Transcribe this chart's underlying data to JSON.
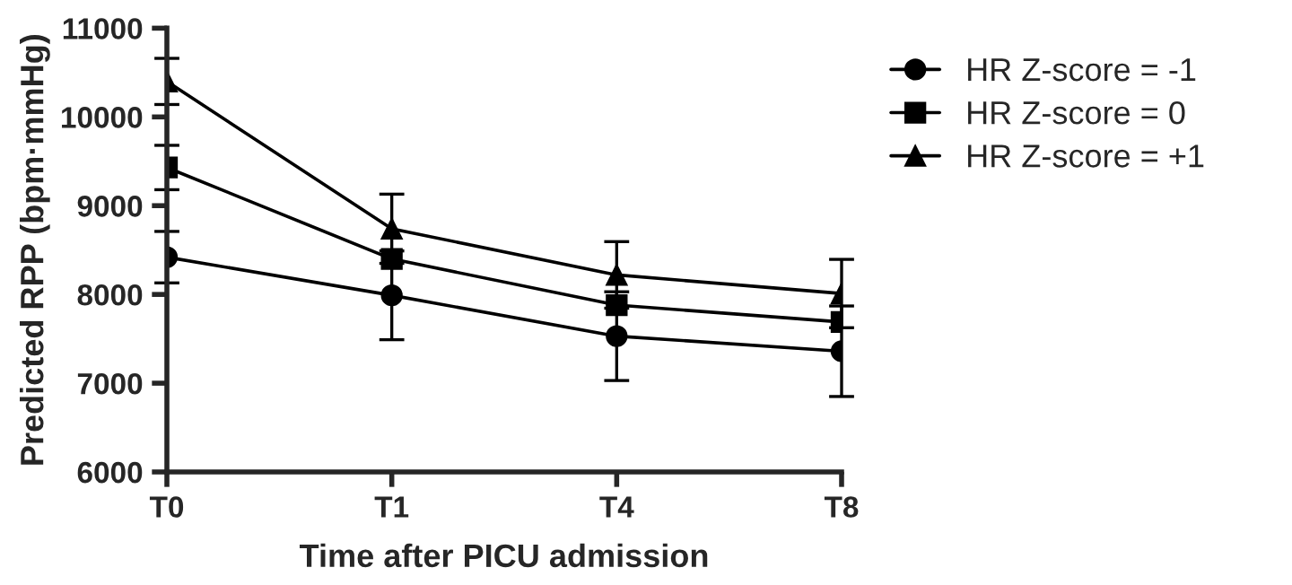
{
  "chart_data": {
    "type": "line",
    "xlabel": "Time after PICU admission",
    "ylabel": "Predicted RPP (bpm·mmHg)",
    "categories": [
      "T0",
      "T1",
      "T4",
      "T8"
    ],
    "ylim": [
      6000,
      11000
    ],
    "yticks": [
      6000,
      7000,
      8000,
      9000,
      10000,
      11000
    ],
    "series": [
      {
        "name": "HR Z-score = -1",
        "color": "#000000",
        "marker": "circle",
        "values": [
          8420,
          7990,
          7530,
          7360
        ],
        "errors": [
          290,
          500,
          500,
          510
        ]
      },
      {
        "name": "HR Z-score = 0",
        "color": "#000000",
        "marker": "square",
        "values": [
          9430,
          8400,
          7880,
          7690
        ],
        "errors": [
          250,
          null,
          null,
          null
        ]
      },
      {
        "name": "HR Z-score = +1",
        "color": "#000000",
        "marker": "triangle",
        "values": [
          10400,
          8740,
          8220,
          8010
        ],
        "errors": [
          260,
          390,
          375,
          385
        ]
      }
    ],
    "grid": false,
    "legend": "top right",
    "line_style": "solid"
  }
}
